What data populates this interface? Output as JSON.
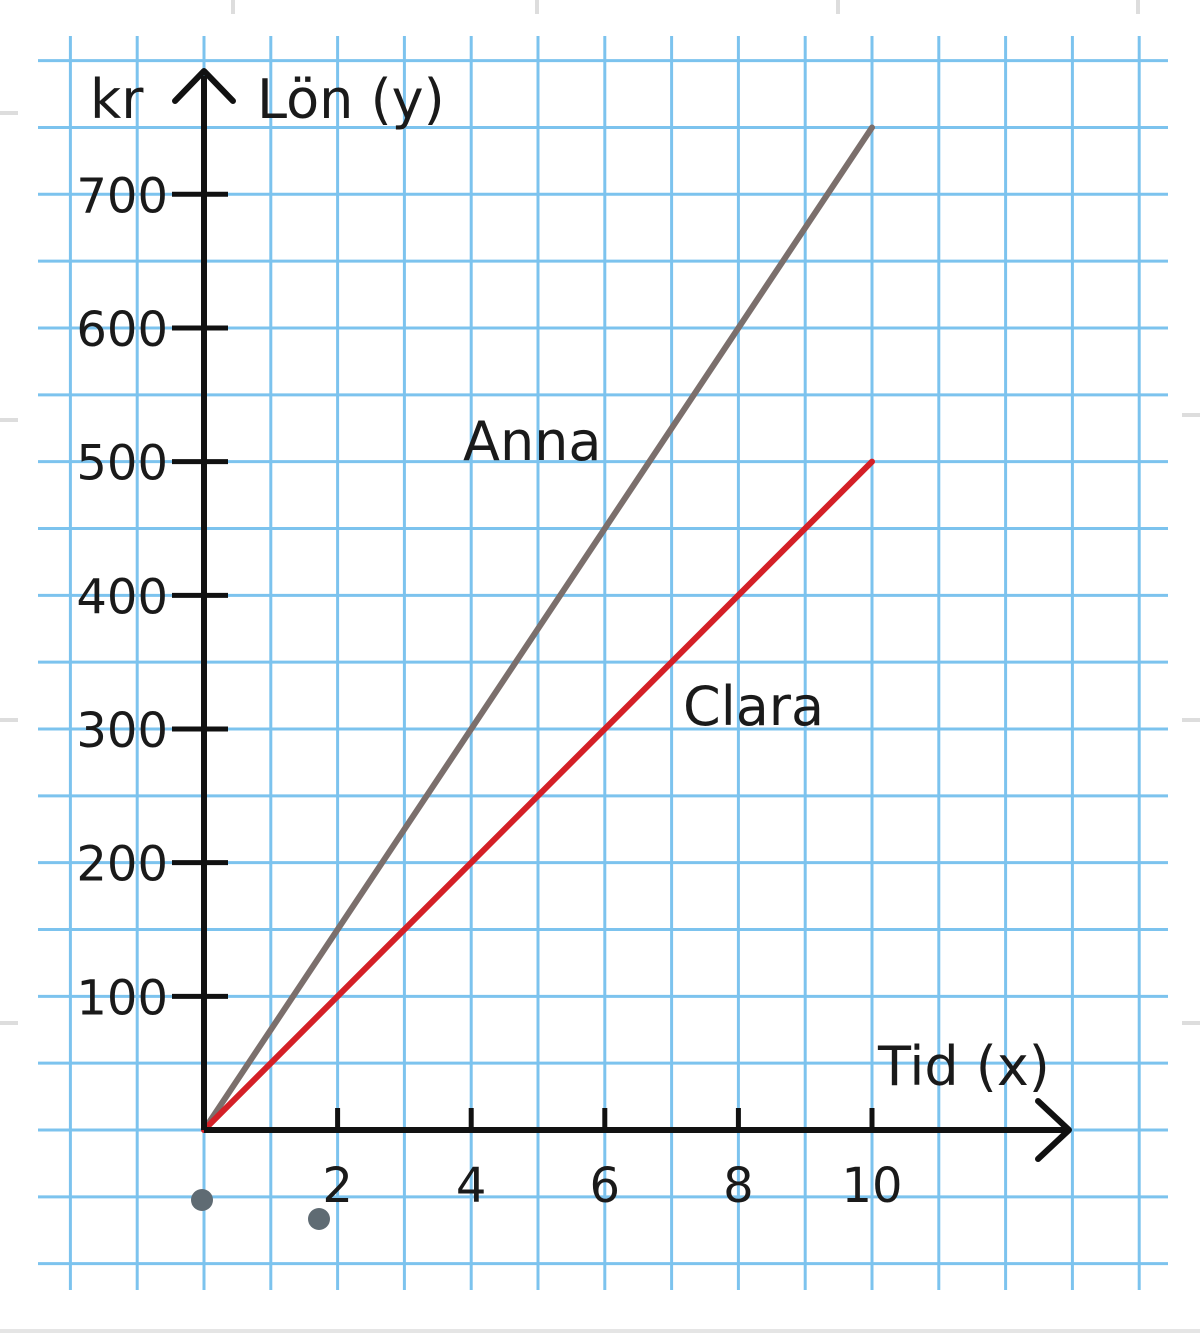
{
  "chart_data": {
    "type": "line",
    "xlabel": "Tid (x)",
    "ylabel": "Lön (y)",
    "yunit": "kr",
    "xlim": [
      0,
      10
    ],
    "ylim": [
      0,
      700
    ],
    "xticks": [
      "2",
      "4",
      "6",
      "8",
      "10"
    ],
    "yticks": [
      "100",
      "200",
      "300",
      "400",
      "500",
      "600",
      "700"
    ],
    "grid": true,
    "series": [
      {
        "name": "Anna",
        "color": "#7b6f6c",
        "x": [
          0,
          10
        ],
        "y": [
          0,
          750
        ]
      },
      {
        "name": "Clara",
        "color": "#d42027",
        "x": [
          0,
          10
        ],
        "y": [
          0,
          500
        ]
      }
    ],
    "colors": {
      "grid": "#7cc3ee",
      "axis": "#111111",
      "background": "#ffffff"
    }
  }
}
